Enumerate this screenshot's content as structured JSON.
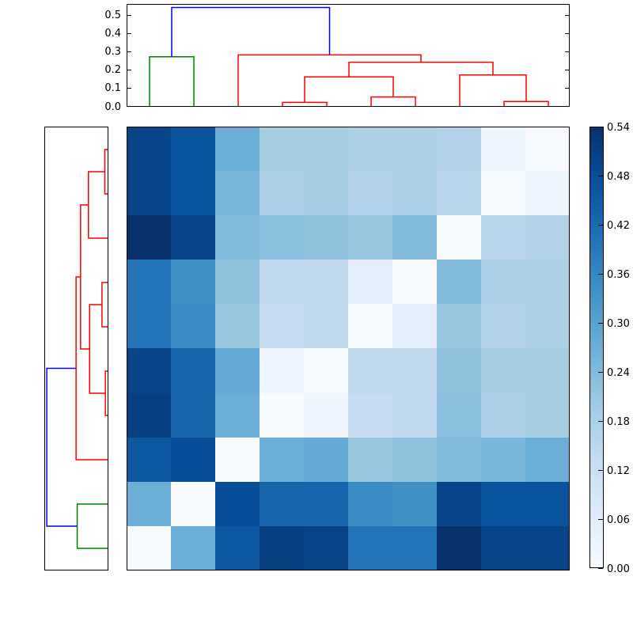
{
  "chart_data": {
    "type": "heatmap",
    "title": "",
    "xlabel": "",
    "ylabel": "",
    "description": "Hierarchically-clustered distance matrix with top and left dendrograms and a Blues colorbar",
    "colormap": "Blues",
    "vmin": 0.0,
    "vmax": 0.54,
    "colormap_anchors": [
      [
        0.0,
        [
          247,
          251,
          255
        ]
      ],
      [
        0.125,
        [
          222,
          235,
          247
        ]
      ],
      [
        0.25,
        [
          198,
          219,
          239
        ]
      ],
      [
        0.375,
        [
          158,
          202,
          225
        ]
      ],
      [
        0.5,
        [
          107,
          174,
          214
        ]
      ],
      [
        0.625,
        [
          66,
          146,
          198
        ]
      ],
      [
        0.75,
        [
          33,
          113,
          181
        ]
      ],
      [
        0.875,
        [
          8,
          81,
          156
        ]
      ],
      [
        1.0,
        [
          8,
          48,
          107
        ]
      ]
    ],
    "n_rows": 10,
    "n_cols": 10,
    "row_order_leaves": [
      10,
      9,
      8,
      7,
      6,
      5,
      4,
      3,
      2,
      1
    ],
    "col_order_leaves": [
      1,
      2,
      3,
      4,
      5,
      6,
      7,
      8,
      9,
      10
    ],
    "matrix_values": [
      [
        0.5,
        0.47,
        0.27,
        0.19,
        0.19,
        0.18,
        0.18,
        0.17,
        0.02,
        0.0
      ],
      [
        0.5,
        0.47,
        0.25,
        0.18,
        0.19,
        0.17,
        0.18,
        0.16,
        0.0,
        0.02
      ],
      [
        0.54,
        0.5,
        0.24,
        0.23,
        0.22,
        0.21,
        0.24,
        0.0,
        0.16,
        0.17
      ],
      [
        0.4,
        0.34,
        0.22,
        0.14,
        0.14,
        0.05,
        0.0,
        0.24,
        0.18,
        0.18
      ],
      [
        0.4,
        0.35,
        0.21,
        0.13,
        0.14,
        0.0,
        0.05,
        0.21,
        0.17,
        0.18
      ],
      [
        0.5,
        0.43,
        0.28,
        0.02,
        0.0,
        0.14,
        0.14,
        0.22,
        0.19,
        0.19
      ],
      [
        0.51,
        0.43,
        0.27,
        0.0,
        0.02,
        0.13,
        0.14,
        0.23,
        0.18,
        0.19
      ],
      [
        0.46,
        0.48,
        0.0,
        0.27,
        0.28,
        0.21,
        0.22,
        0.24,
        0.25,
        0.27
      ],
      [
        0.27,
        0.0,
        0.48,
        0.43,
        0.43,
        0.35,
        0.34,
        0.5,
        0.47,
        0.47
      ],
      [
        0.0,
        0.27,
        0.46,
        0.51,
        0.5,
        0.4,
        0.4,
        0.54,
        0.5,
        0.5
      ]
    ],
    "dendro_axis_max": 0.555,
    "top_dendrogram": {
      "axis_ticks": [
        "0.0",
        "0.1",
        "0.2",
        "0.3",
        "0.4",
        "0.5"
      ],
      "axis_tick_values": [
        0.0,
        0.1,
        0.2,
        0.3,
        0.4,
        0.5
      ],
      "links": [
        {
          "a": [
            1,
            0
          ],
          "b": [
            2,
            0
          ],
          "h": 0.27,
          "color": "green"
        },
        {
          "a": [
            4,
            0
          ],
          "b": [
            5,
            0
          ],
          "h": 0.02,
          "color": "red"
        },
        {
          "a": [
            6,
            0
          ],
          "b": [
            7,
            0
          ],
          "h": 0.05,
          "color": "red"
        },
        {
          "a": [
            9,
            0
          ],
          "b": [
            10,
            0
          ],
          "h": 0.025,
          "color": "red"
        },
        {
          "a": [
            4.5,
            0.02
          ],
          "b": [
            6.5,
            0.05
          ],
          "h": 0.16,
          "color": "red"
        },
        {
          "a": [
            8,
            0
          ],
          "b": [
            9.5,
            0.025
          ],
          "h": 0.17,
          "color": "red"
        },
        {
          "a": [
            5.5,
            0.16
          ],
          "b": [
            8.75,
            0.17
          ],
          "h": 0.24,
          "color": "red"
        },
        {
          "a": [
            3,
            0
          ],
          "b": [
            7.125,
            0.24
          ],
          "h": 0.28,
          "color": "red"
        },
        {
          "a": [
            1.5,
            0.27
          ],
          "b": [
            5.0625,
            0.28
          ],
          "h": 0.54,
          "color": "blue"
        }
      ]
    },
    "left_dendrogram": {
      "links": [
        {
          "a": [
            1,
            0
          ],
          "b": [
            2,
            0
          ],
          "h": 0.025,
          "color": "red"
        },
        {
          "a": [
            4,
            0
          ],
          "b": [
            5,
            0
          ],
          "h": 0.05,
          "color": "red"
        },
        {
          "a": [
            6,
            0
          ],
          "b": [
            7,
            0
          ],
          "h": 0.02,
          "color": "red"
        },
        {
          "a": [
            3,
            0
          ],
          "b": [
            1.5,
            0.025
          ],
          "h": 0.17,
          "color": "red"
        },
        {
          "a": [
            4.5,
            0.05
          ],
          "b": [
            6.5,
            0.02
          ],
          "h": 0.16,
          "color": "red"
        },
        {
          "a": [
            2.25,
            0.17
          ],
          "b": [
            5.5,
            0.16
          ],
          "h": 0.24,
          "color": "red"
        },
        {
          "a": [
            8,
            0
          ],
          "b": [
            3.875,
            0.24
          ],
          "h": 0.28,
          "color": "red"
        },
        {
          "a": [
            9,
            0
          ],
          "b": [
            10,
            0
          ],
          "h": 0.27,
          "color": "green"
        },
        {
          "a": [
            5.9375,
            0.28
          ],
          "b": [
            9.5,
            0.27
          ],
          "h": 0.54,
          "color": "blue"
        }
      ]
    },
    "colorbar": {
      "tick_labels": [
        "0.00",
        "0.06",
        "0.12",
        "0.18",
        "0.24",
        "0.30",
        "0.36",
        "0.42",
        "0.48",
        "0.54"
      ],
      "tick_values": [
        0.0,
        0.06,
        0.12,
        0.18,
        0.24,
        0.3,
        0.36,
        0.42,
        0.48,
        0.54
      ],
      "position": "right"
    }
  },
  "colors": {
    "background": "#ffffff",
    "frame": "#000000",
    "text": "#000000",
    "cluster_green": "#008000",
    "cluster_red": "#ff0000",
    "link_blue": "#0000ff"
  }
}
